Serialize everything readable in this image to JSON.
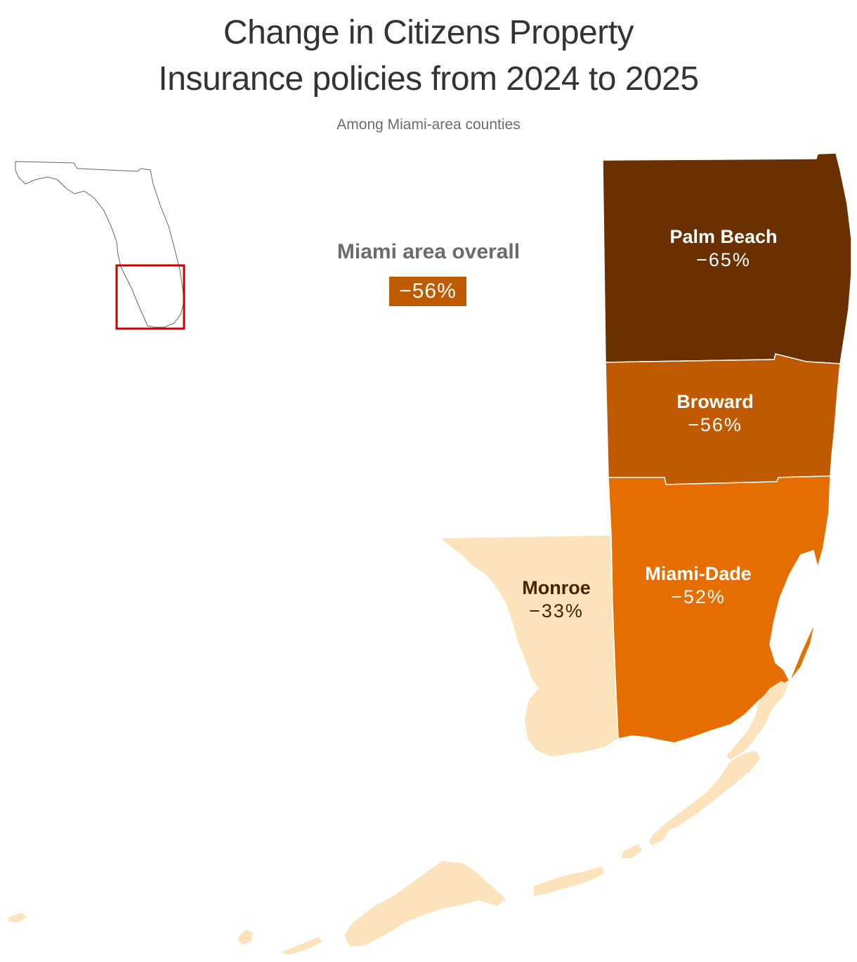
{
  "title_line1": "Change in Citizens Property",
  "title_line2": "Insurance policies from 2024 to 2025",
  "subtitle": "Among Miami-area counties",
  "overall": {
    "label": "Miami area overall",
    "value": "−56%",
    "color": "#c05a00"
  },
  "counties": [
    {
      "name": "Palm Beach",
      "value": "−65%",
      "change": -65,
      "color": "#6a3000"
    },
    {
      "name": "Broward",
      "value": "−56%",
      "change": -56,
      "color": "#c05a00"
    },
    {
      "name": "Miami-Dade",
      "value": "−52%",
      "change": -52,
      "color": "#e66e00"
    },
    {
      "name": "Monroe",
      "value": "−33%",
      "change": -33,
      "color": "#fde3bb"
    }
  ],
  "locator": {
    "state": "Florida",
    "highlight_color": "#cc0000"
  }
}
